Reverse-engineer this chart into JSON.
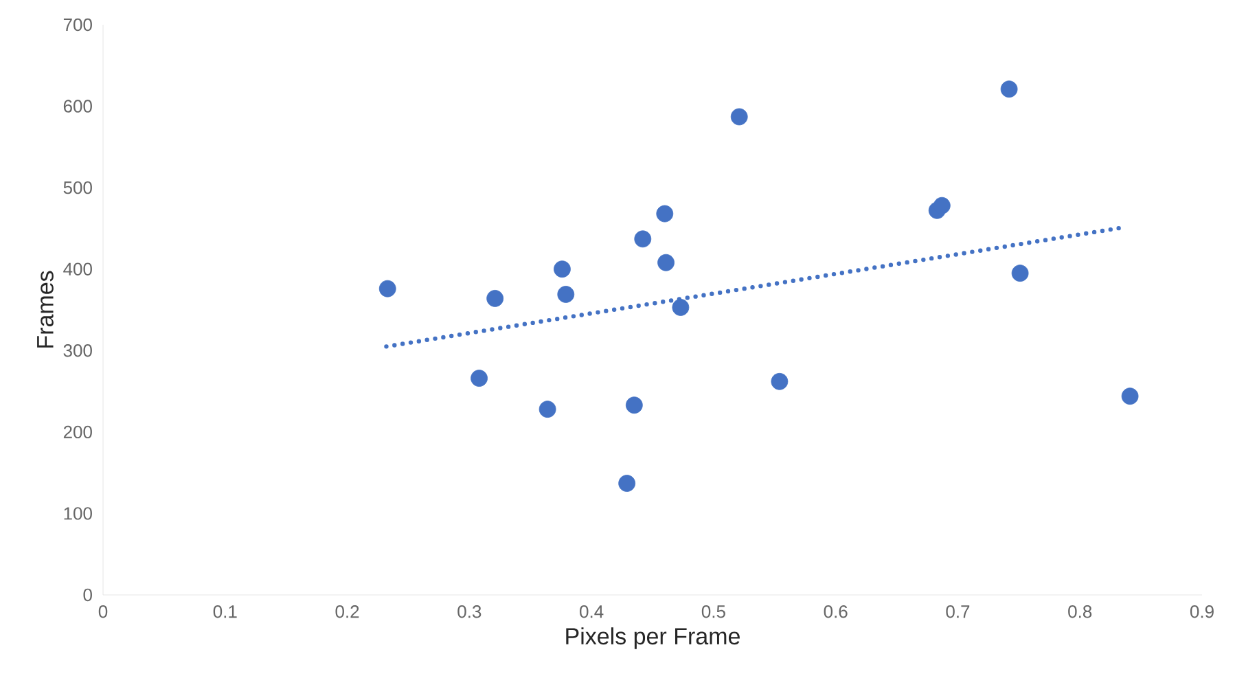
{
  "chart_data": {
    "type": "scatter",
    "xlabel": "Pixels per Frame",
    "ylabel": "Frames",
    "xlim": [
      0,
      0.9
    ],
    "ylim": [
      0,
      700
    ],
    "xticks": [
      0,
      0.1,
      0.2,
      0.3,
      0.4,
      0.5,
      0.6,
      0.7,
      0.8,
      0.9
    ],
    "yticks": [
      0,
      100,
      200,
      300,
      400,
      500,
      600,
      700
    ],
    "grid": false,
    "series": [
      {
        "color": "#4472c4",
        "marker": "circle",
        "x": [
          0.233,
          0.308,
          0.321,
          0.364,
          0.376,
          0.379,
          0.429,
          0.435,
          0.442,
          0.46,
          0.461,
          0.473,
          0.521,
          0.554,
          0.683,
          0.687,
          0.742,
          0.751,
          0.841
        ],
        "values": [
          376,
          266,
          364,
          228,
          400,
          369,
          137,
          233,
          437,
          468,
          408,
          353,
          587,
          262,
          472,
          478,
          621,
          395,
          244
        ]
      },
      {
        "type": "line",
        "color": "#4472c4",
        "line_style": "dotted",
        "x": [
          0.232,
          0.835
        ],
        "values": [
          305,
          451
        ]
      }
    ]
  }
}
